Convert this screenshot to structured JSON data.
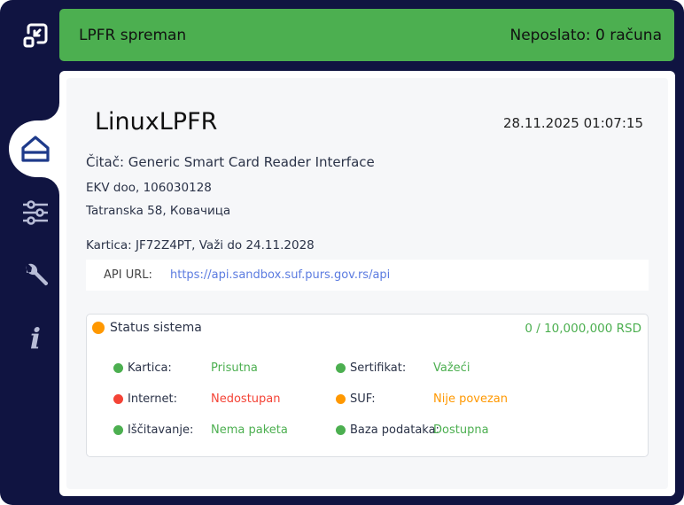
{
  "colors": {
    "background": "#101441",
    "ok": "#4caf50",
    "error": "#f44336",
    "warning": "#ff9800",
    "link": "#5b7be0"
  },
  "sidebar": {
    "items": [
      {
        "icon": "minimize-window-icon"
      },
      {
        "icon": "home-icon",
        "active": true
      },
      {
        "icon": "sliders-icon"
      },
      {
        "icon": "wrench-icon"
      },
      {
        "icon": "info-icon"
      }
    ]
  },
  "status_bar": {
    "left": "LPFR spreman",
    "right": "Neposlato: 0 računa"
  },
  "main": {
    "title": "LinuxLPFR",
    "datetime": "28.11.2025 01:07:15",
    "reader": "Čitač: Generic Smart Card Reader Interface",
    "company": "EKV doo, 106030128",
    "address": "Tatranska 58, Ковачица",
    "card": "Kartica: JF72Z4PT, Važi do 24.11.2028",
    "api_label": "API URL:",
    "api_url": "https://api.sandbox.suf.purs.gov.rs/api"
  },
  "system_status": {
    "title": "Status sistema",
    "title_state": "warning",
    "amount": "0 / 10,000,000 RSD",
    "items": [
      {
        "label": "Kartica:",
        "value": "Prisutna",
        "state": "ok"
      },
      {
        "label": "Sertifikat:",
        "value": "Važeći",
        "state": "ok"
      },
      {
        "label": "Internet:",
        "value": "Nedostupan",
        "state": "error"
      },
      {
        "label": "SUF:",
        "value": "Nije povezan",
        "state": "warning"
      },
      {
        "label": "Iščitavanje:",
        "value": "Nema paketa",
        "state": "ok"
      },
      {
        "label": "Baza podataka:",
        "value": "Dostupna",
        "state": "ok"
      }
    ]
  }
}
